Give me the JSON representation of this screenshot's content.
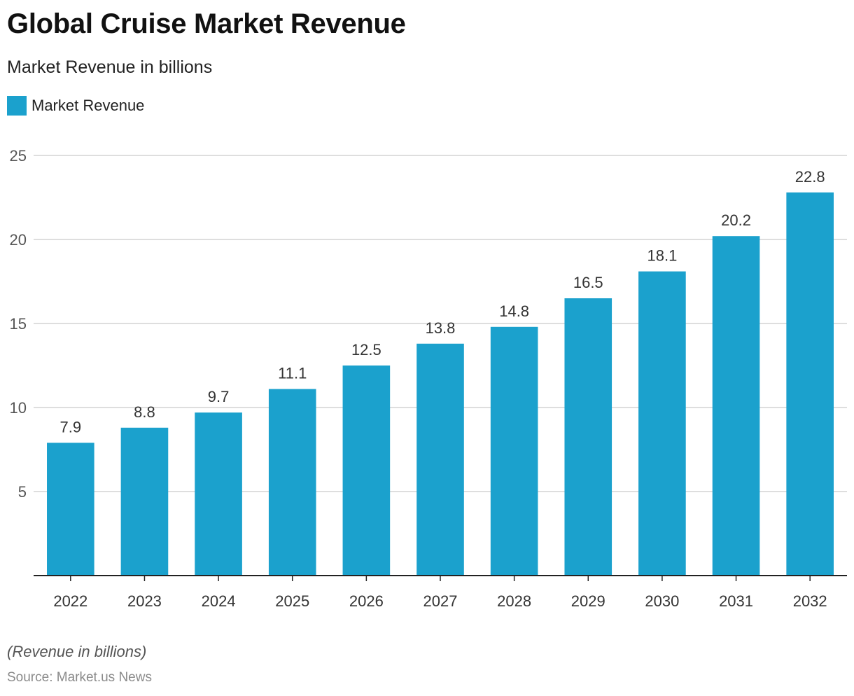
{
  "chart_data": {
    "type": "bar",
    "title": "Global Cruise Market Revenue",
    "subtitle": "Market Revenue in billions",
    "categories": [
      "2022",
      "2023",
      "2024",
      "2025",
      "2026",
      "2027",
      "2028",
      "2029",
      "2030",
      "2031",
      "2032"
    ],
    "series": [
      {
        "name": "Market Revenue",
        "values": [
          7.9,
          8.8,
          9.7,
          11.1,
          12.5,
          13.8,
          14.8,
          16.5,
          18.1,
          20.2,
          22.8
        ],
        "color": "#1ba1cd"
      }
    ],
    "ylim": [
      0,
      25
    ],
    "yticks": [
      5,
      10,
      15,
      20,
      25
    ],
    "grid": true,
    "legend_position": "top-left",
    "note": "(Revenue in billions)",
    "source": "Source: Market.us News"
  }
}
